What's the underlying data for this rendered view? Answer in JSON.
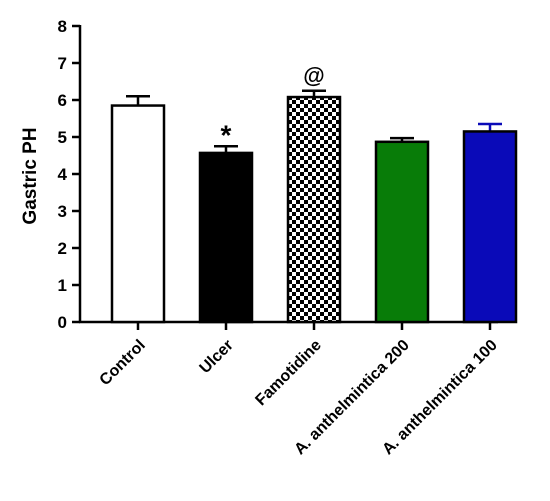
{
  "chart_data": {
    "type": "bar",
    "categories": [
      "Control",
      "Ulcer",
      "Famotidine",
      "A. anthelmintica 200",
      "A. anthelmintica 100"
    ],
    "values": [
      5.85,
      4.57,
      6.08,
      4.87,
      5.15
    ],
    "errors": [
      0.25,
      0.18,
      0.17,
      0.1,
      0.2
    ],
    "fills": [
      "#ffffff",
      "#000000",
      "checkerboard",
      "#087c08",
      "#0a0ab8"
    ],
    "error_colors": [
      "#000000",
      "#000000",
      "#000000",
      "#000000",
      "#0a0ab8"
    ],
    "annotations": [
      "",
      "*",
      "@",
      "",
      ""
    ],
    "ylabel": "Gastric PH",
    "xlabel": "",
    "title": "",
    "ylim": [
      0,
      8
    ],
    "yticks": [
      0,
      1,
      2,
      3,
      4,
      5,
      6,
      7,
      8
    ],
    "grid": false,
    "legend": "none"
  }
}
